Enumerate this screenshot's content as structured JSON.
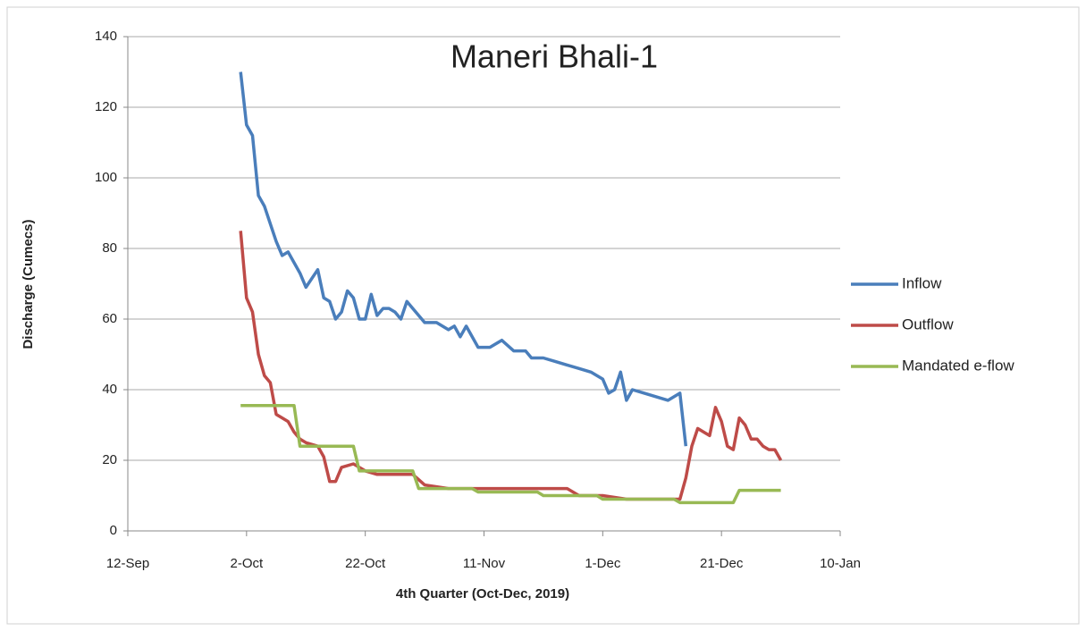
{
  "chart_data": {
    "type": "line",
    "title": "Maneri Bhali-1",
    "xlabel": "4th Quarter (Oct-Dec, 2019)",
    "ylabel": "Discharge (Cumecs)",
    "xlim": [
      "12-Sep",
      "10-Jan"
    ],
    "xticks": [
      "12-Sep",
      "2-Oct",
      "22-Oct",
      "11-Nov",
      "1-Dec",
      "21-Dec",
      "10-Jan"
    ],
    "ylim": [
      0,
      140
    ],
    "yticks": [
      0,
      20,
      40,
      60,
      80,
      100,
      120,
      140
    ],
    "grid": true,
    "legend": "right",
    "series": [
      {
        "name": "Inflow",
        "color": "#4a7ebb",
        "x": [
          "1-Oct",
          "2-Oct",
          "3-Oct",
          "4-Oct",
          "5-Oct",
          "7-Oct",
          "8-Oct",
          "9-Oct",
          "11-Oct",
          "12-Oct",
          "14-Oct",
          "15-Oct",
          "16-Oct",
          "17-Oct",
          "18-Oct",
          "19-Oct",
          "20-Oct",
          "21-Oct",
          "22-Oct",
          "23-Oct",
          "24-Oct",
          "25-Oct",
          "26-Oct",
          "27-Oct",
          "28-Oct",
          "29-Oct",
          "30-Oct",
          "1-Nov",
          "3-Nov",
          "5-Nov",
          "6-Nov",
          "7-Nov",
          "8-Nov",
          "10-Nov",
          "12-Nov",
          "14-Nov",
          "16-Nov",
          "18-Nov",
          "19-Nov",
          "21-Nov",
          "23-Nov",
          "25-Nov",
          "27-Nov",
          "29-Nov",
          "1-Dec",
          "2-Dec",
          "3-Dec",
          "4-Dec",
          "5-Dec",
          "6-Dec",
          "8-Dec",
          "10-Dec",
          "12-Dec",
          "14-Dec",
          "15-Dec"
        ],
        "values": [
          130,
          115,
          112,
          95,
          92,
          82,
          78,
          79,
          73,
          69,
          74,
          66,
          65,
          60,
          62,
          68,
          66,
          60,
          60,
          67,
          61,
          63,
          63,
          62,
          60,
          65,
          63,
          59,
          59,
          57,
          58,
          55,
          58,
          52,
          52,
          54,
          51,
          51,
          49,
          49,
          48,
          47,
          46,
          45,
          43,
          39,
          40,
          45,
          37,
          40,
          39,
          38,
          37,
          39,
          24
        ]
      },
      {
        "name": "Outflow",
        "color": "#be4b48",
        "x": [
          "1-Oct",
          "2-Oct",
          "3-Oct",
          "4-Oct",
          "5-Oct",
          "6-Oct",
          "7-Oct",
          "8-Oct",
          "9-Oct",
          "10-Oct",
          "11-Oct",
          "12-Oct",
          "14-Oct",
          "15-Oct",
          "16-Oct",
          "17-Oct",
          "18-Oct",
          "20-Oct",
          "22-Oct",
          "24-Oct",
          "26-Oct",
          "28-Oct",
          "30-Oct",
          "1-Nov",
          "5-Nov",
          "10-Nov",
          "15-Nov",
          "20-Nov",
          "25-Nov",
          "27-Nov",
          "29-Nov",
          "1-Dec",
          "5-Dec",
          "10-Dec",
          "14-Dec",
          "15-Dec",
          "16-Dec",
          "17-Dec",
          "18-Dec",
          "19-Dec",
          "20-Dec",
          "21-Dec",
          "22-Dec",
          "23-Dec",
          "24-Dec",
          "25-Dec",
          "26-Dec",
          "27-Dec",
          "28-Dec",
          "29-Dec",
          "30-Dec",
          "31-Dec"
        ],
        "values": [
          85,
          66,
          62,
          50,
          44,
          42,
          33,
          32,
          31,
          28,
          26,
          25,
          24,
          21,
          14,
          14,
          18,
          19,
          17,
          16,
          16,
          16,
          16,
          13,
          12,
          12,
          12,
          12,
          12,
          10,
          10,
          10,
          9,
          9,
          9,
          15,
          24,
          29,
          28,
          27,
          35,
          31,
          24,
          23,
          32,
          30,
          26,
          26,
          24,
          23,
          23,
          20
        ]
      },
      {
        "name": "Mandated e-flow",
        "color": "#98b954",
        "x": [
          "1-Oct",
          "10-Oct",
          "11-Oct",
          "20-Oct",
          "21-Oct",
          "30-Oct",
          "31-Oct",
          "9-Nov",
          "10-Nov",
          "20-Nov",
          "21-Nov",
          "30-Nov",
          "1-Dec",
          "13-Dec",
          "14-Dec",
          "23-Dec",
          "24-Dec",
          "31-Dec"
        ],
        "values": [
          35.5,
          35.5,
          24,
          24,
          17,
          17,
          12,
          12,
          11,
          11,
          10,
          10,
          9,
          9,
          8,
          8,
          11.5,
          11.5
        ]
      }
    ]
  }
}
